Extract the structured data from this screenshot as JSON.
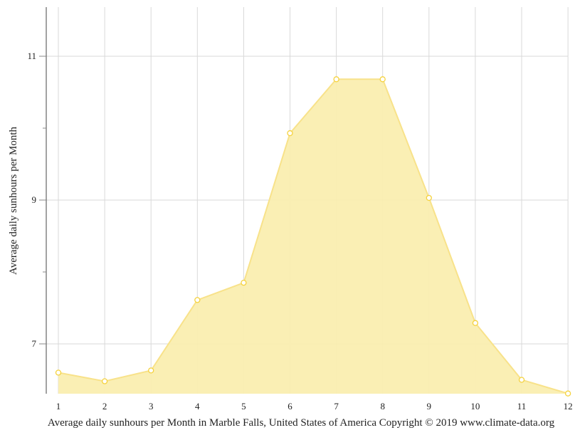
{
  "chart_data": {
    "type": "area",
    "title": "",
    "caption": "Average daily sunhours per Month in Marble Falls, United States of America Copyright © 2019 www.climate-data.org",
    "xlabel": "",
    "ylabel": "Average daily sunhours per Month",
    "categories": [
      "1",
      "2",
      "3",
      "4",
      "5",
      "6",
      "7",
      "8",
      "9",
      "10",
      "11",
      "12"
    ],
    "values": [
      6.6,
      6.48,
      6.63,
      7.61,
      7.85,
      9.93,
      10.68,
      10.68,
      9.03,
      7.29,
      6.5,
      6.31
    ],
    "y_ticks_labeled": [
      7,
      9,
      11
    ],
    "y_ticks_minor": [
      8,
      10
    ],
    "ylim": [
      6.3,
      11.7
    ],
    "grid": true,
    "legend": null,
    "colors": {
      "fill": "#faeeb0",
      "line": "#f8e28a",
      "marker_stroke": "#f5d23e",
      "marker_fill": "#ffffff",
      "grid": "#d9d9d9",
      "axis": "#444444"
    }
  }
}
